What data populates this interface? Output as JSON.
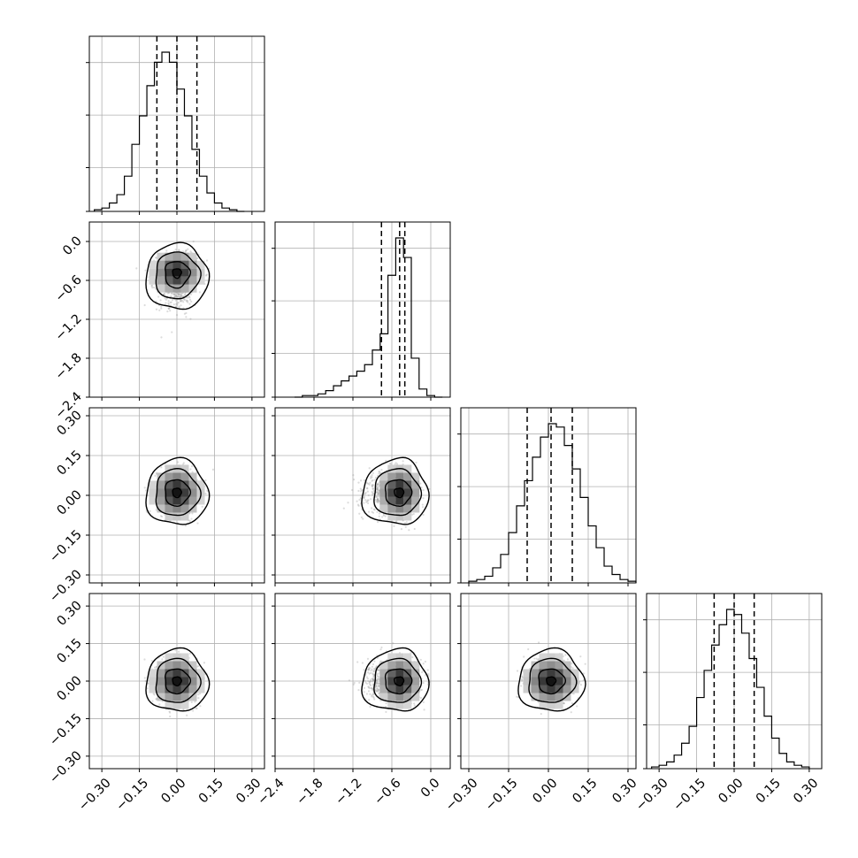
{
  "chart_data": {
    "type": "corner",
    "n_params": 4,
    "grid": true,
    "quantile_lines": "dashed",
    "diag_color": "#000000",
    "scatter_color": "#9a9a9a",
    "param_ranges": [
      [
        -0.35,
        0.35
      ],
      [
        -2.4,
        0.3
      ],
      [
        -0.33,
        0.33
      ],
      [
        -0.35,
        0.35
      ]
    ],
    "param_ticks": [
      [
        "−0.30",
        "−0.15",
        "0.00",
        "0.15",
        "0.30"
      ],
      [
        "−2.4",
        "−1.8",
        "−1.2",
        "−0.6",
        "0.0"
      ],
      [
        "−0.30",
        "−0.15",
        "0.00",
        "0.15",
        "0.30"
      ],
      [
        "−0.30",
        "−0.15",
        "0.00",
        "0.15",
        "0.30"
      ]
    ],
    "param_tick_values": [
      [
        -0.3,
        -0.15,
        0.0,
        0.15,
        0.3
      ],
      [
        -2.4,
        -1.8,
        -1.2,
        -0.6,
        0.0
      ],
      [
        -0.3,
        -0.15,
        0.0,
        0.15,
        0.3
      ],
      [
        -0.3,
        -0.15,
        0.0,
        0.15,
        0.3
      ]
    ],
    "marginals": [
      {
        "param": 0,
        "bin_edges": [
          -0.33,
          -0.3,
          -0.27,
          -0.24,
          -0.21,
          -0.18,
          -0.15,
          -0.12,
          -0.09,
          -0.06,
          -0.03,
          0.0,
          0.03,
          0.06,
          0.09,
          0.12,
          0.15,
          0.18,
          0.21,
          0.24,
          0.27
        ],
        "counts": [
          1,
          2,
          5,
          10,
          21,
          40,
          57,
          75,
          89,
          95,
          89,
          73,
          57,
          37,
          21,
          11,
          5,
          2,
          1,
          0
        ],
        "quantiles": [
          -0.08,
          0.0,
          0.08
        ]
      },
      {
        "param": 1,
        "bin_edges": [
          -2.1,
          -1.98,
          -1.86,
          -1.74,
          -1.62,
          -1.5,
          -1.38,
          -1.26,
          -1.14,
          -1.02,
          -0.9,
          -0.78,
          -0.66,
          -0.54,
          -0.42,
          -0.3,
          -0.18,
          -0.06,
          0.06,
          0.18
        ],
        "counts": [
          0,
          1,
          1,
          2,
          4,
          7,
          10,
          13,
          16,
          20,
          29,
          39,
          75,
          98,
          86,
          24,
          5,
          1,
          0
        ],
        "quantiles": [
          -0.76,
          -0.48,
          -0.4
        ]
      },
      {
        "param": 2,
        "bin_edges": [
          -0.3,
          -0.27,
          -0.24,
          -0.21,
          -0.18,
          -0.15,
          -0.12,
          -0.09,
          -0.06,
          -0.03,
          0.0,
          0.03,
          0.06,
          0.09,
          0.12,
          0.15,
          0.18,
          0.21,
          0.24,
          0.27,
          0.3,
          0.33
        ],
        "counts": [
          1,
          2,
          4,
          9,
          17,
          30,
          46,
          61,
          75,
          87,
          95,
          93,
          82,
          68,
          51,
          34,
          21,
          10,
          5,
          2,
          1
        ],
        "quantiles": [
          -0.08,
          0.01,
          0.09
        ]
      },
      {
        "param": 3,
        "bin_edges": [
          -0.33,
          -0.3,
          -0.27,
          -0.24,
          -0.21,
          -0.18,
          -0.15,
          -0.12,
          -0.09,
          -0.06,
          -0.03,
          0.0,
          0.03,
          0.06,
          0.09,
          0.12,
          0.15,
          0.18,
          0.21,
          0.24,
          0.27,
          0.3
        ],
        "counts": [
          1,
          2,
          4,
          8,
          15,
          25,
          42,
          58,
          73,
          85,
          94,
          91,
          80,
          65,
          48,
          31,
          18,
          9,
          4,
          2,
          1
        ],
        "quantiles": [
          -0.08,
          0.0,
          0.08
        ]
      }
    ],
    "joint": [
      {
        "x_param": 0,
        "y_param": 1,
        "center": [
          0.0,
          -0.48
        ],
        "spread": [
          0.08,
          0.28
        ],
        "skew_y": "lower-tail",
        "corr": 0.0
      },
      {
        "x_param": 0,
        "y_param": 2,
        "center": [
          0.0,
          0.01
        ],
        "spread": [
          0.08,
          0.08
        ],
        "skew_y": "none",
        "corr": 0.0
      },
      {
        "x_param": 1,
        "y_param": 2,
        "center": [
          -0.48,
          0.01
        ],
        "spread": [
          0.28,
          0.08
        ],
        "skew_x": "lower-tail",
        "corr": 0.0
      },
      {
        "x_param": 0,
        "y_param": 3,
        "center": [
          0.0,
          0.0
        ],
        "spread": [
          0.08,
          0.08
        ],
        "skew_y": "none",
        "corr": 0.0
      },
      {
        "x_param": 1,
        "y_param": 3,
        "center": [
          -0.48,
          0.0
        ],
        "spread": [
          0.28,
          0.08
        ],
        "skew_x": "lower-tail",
        "corr": 0.0
      },
      {
        "x_param": 2,
        "y_param": 3,
        "center": [
          0.01,
          0.0
        ],
        "spread": [
          0.08,
          0.08
        ],
        "skew_y": "none",
        "corr": 0.0
      }
    ]
  }
}
